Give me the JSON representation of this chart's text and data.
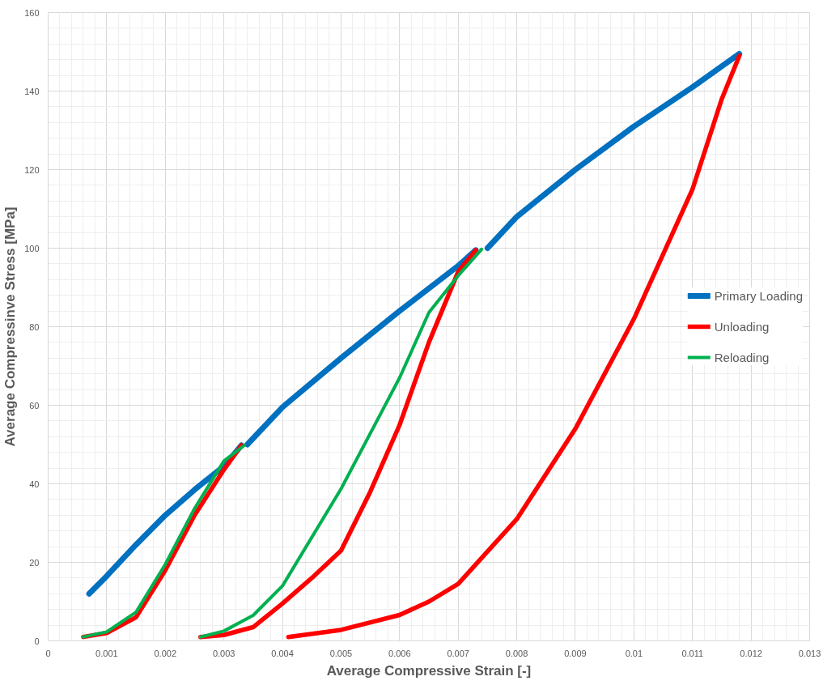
{
  "chart_data": {
    "type": "line",
    "xlabel": "Average Compressive Strain [-]",
    "ylabel": "Average Compressinve Stress [MPa]",
    "xlim": [
      0,
      0.013
    ],
    "xticks": [
      0,
      0.001,
      0.002,
      0.003,
      0.004,
      0.005,
      0.006,
      0.007,
      0.008,
      0.009,
      0.01,
      0.011,
      0.012,
      0.013
    ],
    "ylim": [
      0,
      160
    ],
    "yticks": [
      0,
      20,
      40,
      60,
      80,
      100,
      120,
      140,
      160
    ],
    "grid": true,
    "legend": "right",
    "marker": "none",
    "line_style": "solid",
    "series": [
      {
        "name": "Primary Loading",
        "color": "#0070c0",
        "x": [
          0.0007,
          0.001,
          0.0015,
          0.002,
          0.0025,
          0.003,
          0.0033,
          null,
          0.0034,
          0.004,
          0.005,
          0.006,
          0.007,
          0.0073,
          null,
          0.0075,
          0.008,
          0.009,
          0.01,
          0.011,
          0.0118
        ],
        "values": [
          12,
          16.5,
          24.5,
          32,
          38.5,
          44.5,
          49.8,
          null,
          50,
          59.5,
          72,
          84,
          95.5,
          99.5,
          null,
          100,
          108,
          120,
          131,
          141,
          149.5
        ]
      },
      {
        "name": "Unloading",
        "color": "#ff0000",
        "x": [
          0.0033,
          0.003,
          0.0025,
          0.002,
          0.0015,
          0.001,
          0.0006,
          null,
          0.0073,
          0.007,
          0.0065,
          0.006,
          0.0055,
          0.005,
          0.0045,
          0.004,
          0.0035,
          0.003,
          0.0026,
          null,
          0.0118,
          0.0115,
          0.011,
          0.01,
          0.009,
          0.008,
          0.007,
          0.0065,
          0.006,
          0.005,
          0.0041
        ],
        "values": [
          49.8,
          43.6,
          32,
          18,
          6,
          2,
          1,
          null,
          99.5,
          94,
          76,
          55,
          38,
          23,
          16,
          9.5,
          3.5,
          1.5,
          1,
          null,
          149,
          138,
          115,
          82,
          54,
          31,
          14.5,
          10,
          6.6,
          2.8,
          1
        ]
      },
      {
        "name": "Reloading",
        "color": "#00b050",
        "x": [
          0.0006,
          0.001,
          0.0015,
          0.002,
          0.0025,
          0.003,
          0.00335,
          null,
          0.0026,
          0.003,
          0.0035,
          0.004,
          0.005,
          0.006,
          0.0065,
          0.007,
          0.0074
        ],
        "values": [
          1,
          2.3,
          7.3,
          19.5,
          33.7,
          45.8,
          49.8,
          null,
          1,
          2.5,
          6.5,
          14,
          38.7,
          67,
          83.6,
          93,
          99.7
        ]
      }
    ]
  }
}
